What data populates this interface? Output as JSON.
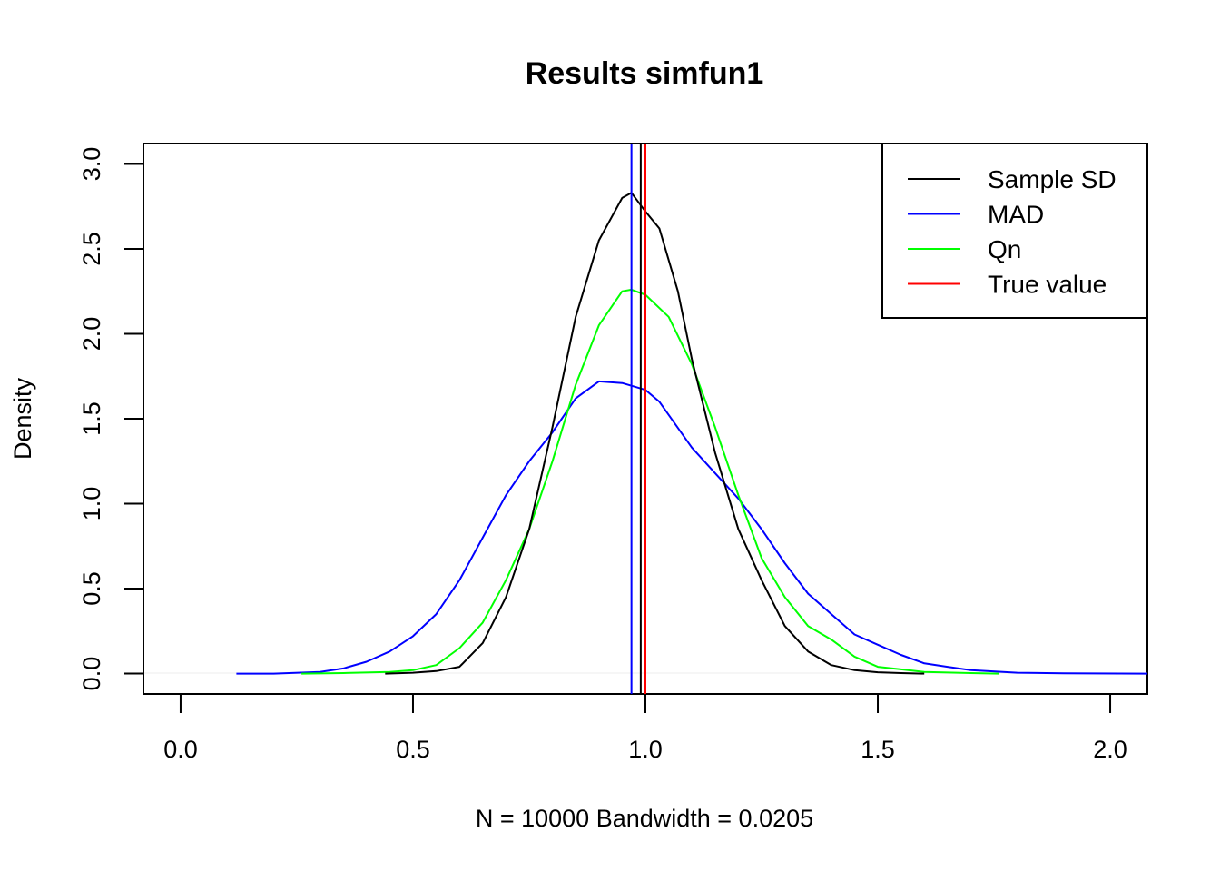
{
  "chart_data": {
    "type": "line",
    "title": "Results simfun1",
    "xlabel": "N = 10000   Bandwidth = 0.0205",
    "ylabel": "Density",
    "xlim": [
      -0.08,
      2.08
    ],
    "ylim": [
      -0.12,
      3.12
    ],
    "x_ticks": [
      0.0,
      0.5,
      1.0,
      1.5,
      2.0
    ],
    "x_tick_labels": [
      "0.0",
      "0.5",
      "1.0",
      "1.5",
      "2.0"
    ],
    "y_ticks": [
      0.0,
      0.5,
      1.0,
      1.5,
      2.0,
      2.5,
      3.0
    ],
    "y_tick_labels": [
      "0.0",
      "0.5",
      "1.0",
      "1.5",
      "2.0",
      "2.5",
      "3.0"
    ],
    "grid": false,
    "legend_position": "top-right",
    "series": [
      {
        "name": "Sample SD",
        "color": "#000000",
        "points": [
          [
            0.44,
            0.0
          ],
          [
            0.5,
            0.005
          ],
          [
            0.55,
            0.015
          ],
          [
            0.6,
            0.04
          ],
          [
            0.65,
            0.18
          ],
          [
            0.7,
            0.45
          ],
          [
            0.75,
            0.85
          ],
          [
            0.8,
            1.45
          ],
          [
            0.85,
            2.1
          ],
          [
            0.9,
            2.55
          ],
          [
            0.95,
            2.8
          ],
          [
            0.97,
            2.83
          ],
          [
            1.0,
            2.72
          ],
          [
            1.03,
            2.62
          ],
          [
            1.07,
            2.25
          ],
          [
            1.1,
            1.85
          ],
          [
            1.15,
            1.3
          ],
          [
            1.2,
            0.85
          ],
          [
            1.25,
            0.55
          ],
          [
            1.3,
            0.28
          ],
          [
            1.35,
            0.13
          ],
          [
            1.4,
            0.05
          ],
          [
            1.45,
            0.02
          ],
          [
            1.5,
            0.008
          ],
          [
            1.55,
            0.003
          ],
          [
            1.6,
            0.0
          ]
        ]
      },
      {
        "name": "MAD",
        "color": "#0000FF",
        "points": [
          [
            0.12,
            0.0
          ],
          [
            0.2,
            0.0
          ],
          [
            0.3,
            0.01
          ],
          [
            0.35,
            0.03
          ],
          [
            0.4,
            0.07
          ],
          [
            0.45,
            0.13
          ],
          [
            0.5,
            0.22
          ],
          [
            0.55,
            0.35
          ],
          [
            0.6,
            0.55
          ],
          [
            0.65,
            0.8
          ],
          [
            0.7,
            1.05
          ],
          [
            0.75,
            1.25
          ],
          [
            0.8,
            1.42
          ],
          [
            0.85,
            1.62
          ],
          [
            0.9,
            1.72
          ],
          [
            0.95,
            1.71
          ],
          [
            1.0,
            1.67
          ],
          [
            1.03,
            1.6
          ],
          [
            1.1,
            1.33
          ],
          [
            1.15,
            1.18
          ],
          [
            1.2,
            1.03
          ],
          [
            1.25,
            0.85
          ],
          [
            1.3,
            0.65
          ],
          [
            1.35,
            0.47
          ],
          [
            1.4,
            0.35
          ],
          [
            1.45,
            0.23
          ],
          [
            1.5,
            0.17
          ],
          [
            1.55,
            0.11
          ],
          [
            1.6,
            0.06
          ],
          [
            1.65,
            0.04
          ],
          [
            1.7,
            0.02
          ],
          [
            1.8,
            0.005
          ],
          [
            1.9,
            0.002
          ],
          [
            2.08,
            0.0
          ]
        ]
      },
      {
        "name": "Qn",
        "color": "#00FF00",
        "points": [
          [
            0.26,
            0.0
          ],
          [
            0.35,
            0.003
          ],
          [
            0.45,
            0.01
          ],
          [
            0.5,
            0.02
          ],
          [
            0.55,
            0.05
          ],
          [
            0.6,
            0.15
          ],
          [
            0.65,
            0.3
          ],
          [
            0.7,
            0.55
          ],
          [
            0.75,
            0.85
          ],
          [
            0.8,
            1.25
          ],
          [
            0.85,
            1.7
          ],
          [
            0.9,
            2.05
          ],
          [
            0.95,
            2.25
          ],
          [
            0.97,
            2.26
          ],
          [
            1.0,
            2.23
          ],
          [
            1.05,
            2.1
          ],
          [
            1.1,
            1.82
          ],
          [
            1.15,
            1.45
          ],
          [
            1.2,
            1.05
          ],
          [
            1.25,
            0.68
          ],
          [
            1.3,
            0.45
          ],
          [
            1.35,
            0.28
          ],
          [
            1.4,
            0.2
          ],
          [
            1.45,
            0.1
          ],
          [
            1.5,
            0.04
          ],
          [
            1.55,
            0.025
          ],
          [
            1.6,
            0.01
          ],
          [
            1.7,
            0.003
          ],
          [
            1.76,
            0.0
          ]
        ]
      }
    ],
    "vlines": [
      {
        "name": "MAD",
        "x": 0.97,
        "color": "#0000FF"
      },
      {
        "name": "Sample SD",
        "x": 0.99,
        "color": "#000000"
      },
      {
        "name": "True value",
        "x": 1.0,
        "color": "#FF0000"
      }
    ],
    "legend": [
      {
        "label": "Sample SD",
        "color": "#000000"
      },
      {
        "label": "MAD",
        "color": "#0000FF"
      },
      {
        "label": "Qn",
        "color": "#00FF00"
      },
      {
        "label": "True value",
        "color": "#FF0000"
      }
    ]
  }
}
